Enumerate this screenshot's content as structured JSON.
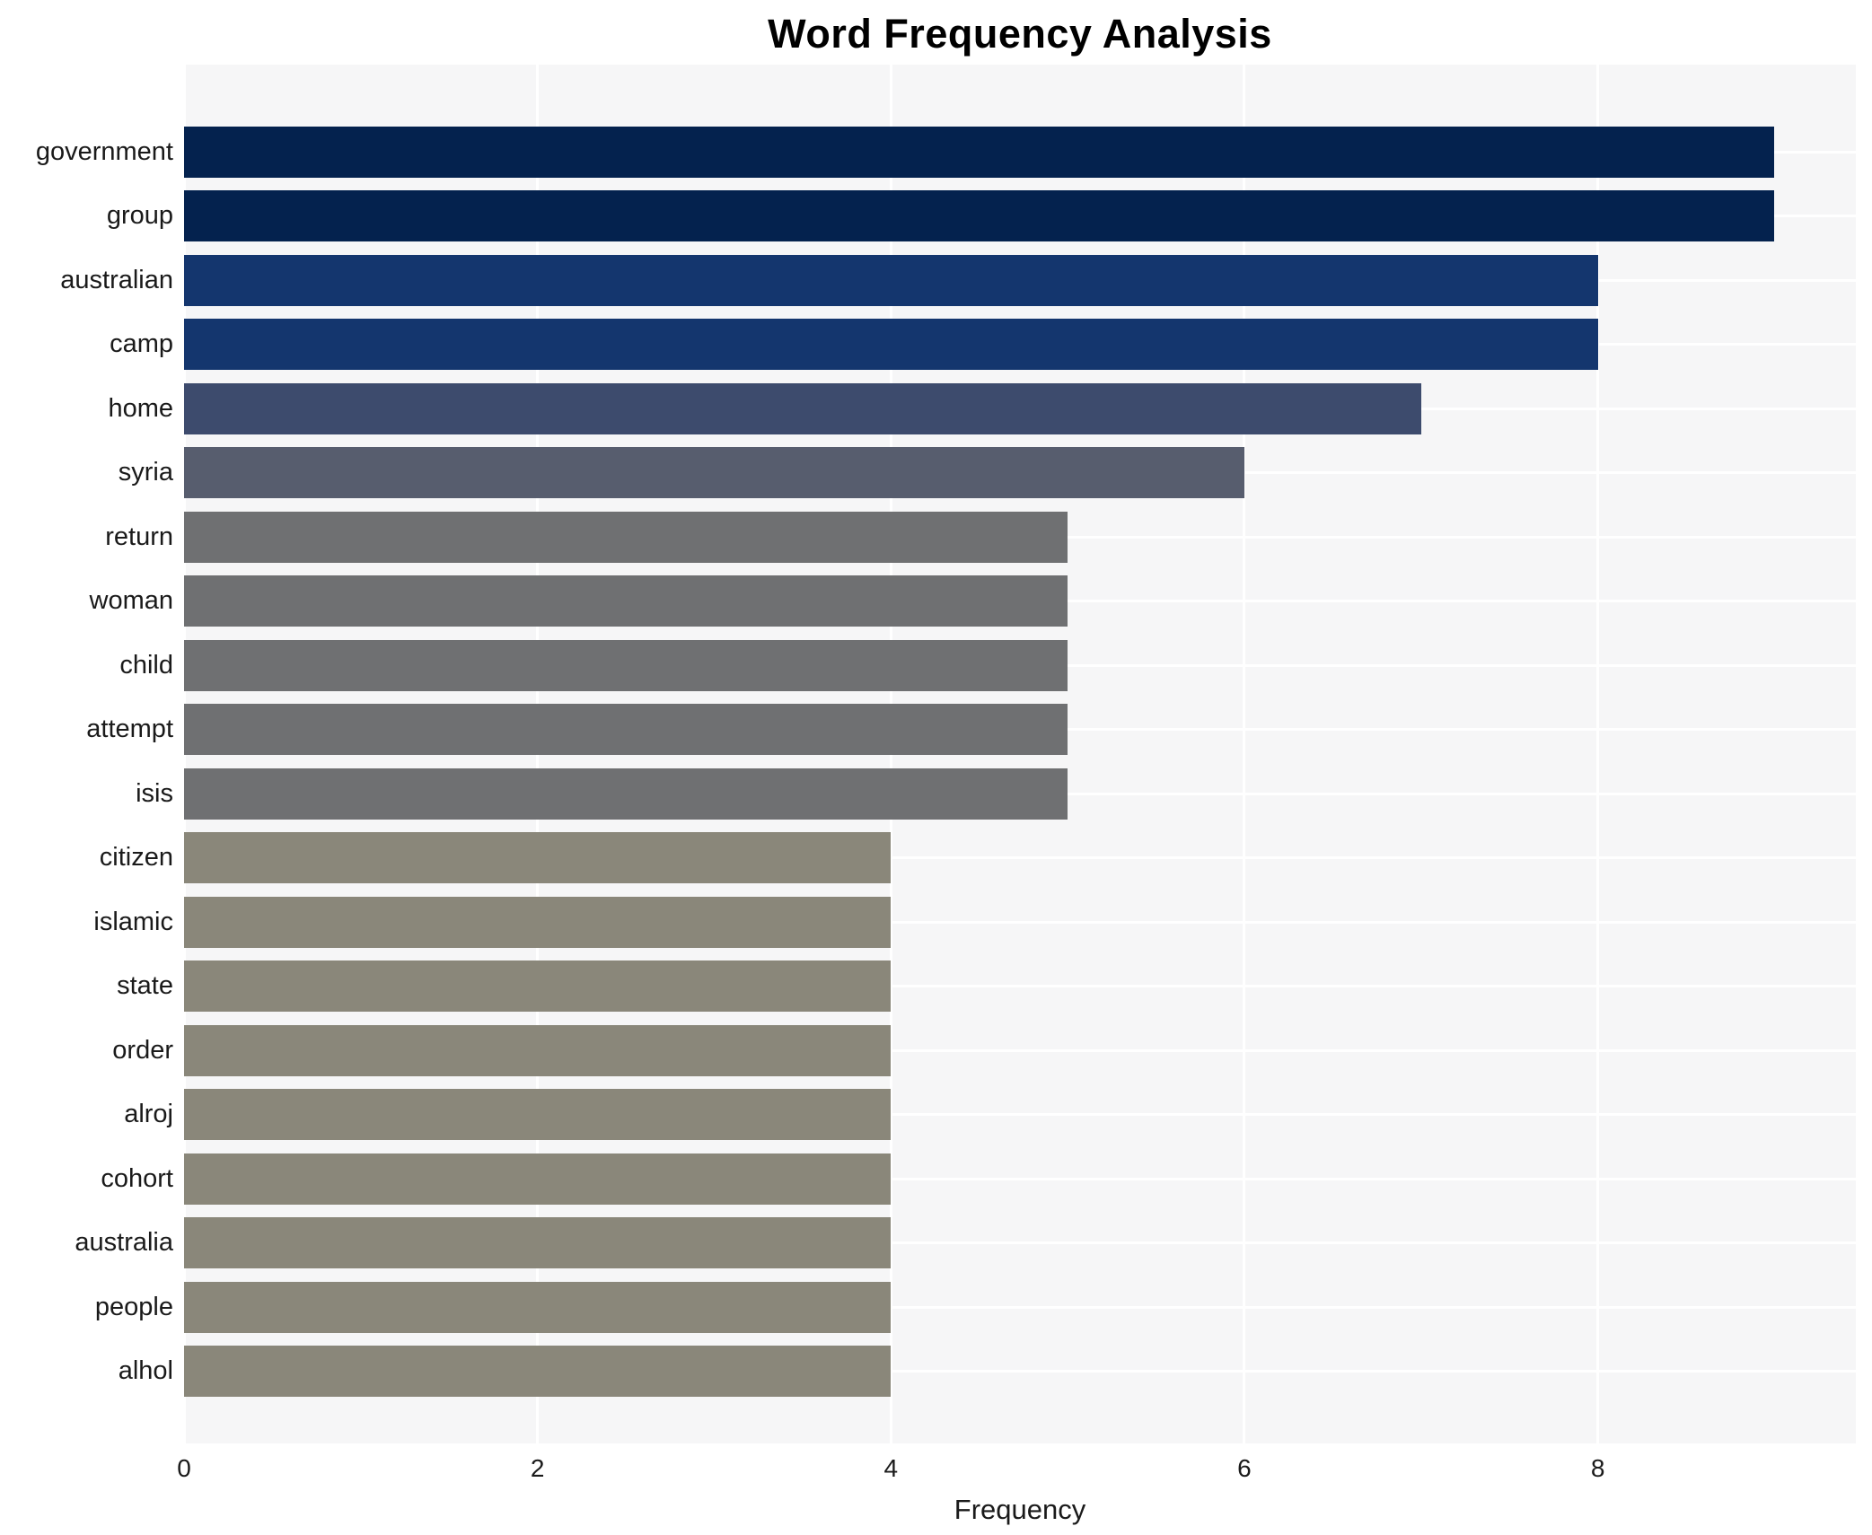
{
  "chart_data": {
    "type": "bar",
    "orientation": "horizontal",
    "title": "Word Frequency Analysis",
    "xlabel": "Frequency",
    "ylabel": "",
    "categories": [
      "government",
      "group",
      "australian",
      "camp",
      "home",
      "syria",
      "return",
      "woman",
      "child",
      "attempt",
      "isis",
      "citizen",
      "islamic",
      "state",
      "order",
      "alroj",
      "cohort",
      "australia",
      "people",
      "alhol"
    ],
    "values": [
      9,
      9,
      8,
      8,
      7,
      6,
      5,
      5,
      5,
      5,
      5,
      4,
      4,
      4,
      4,
      4,
      4,
      4,
      4,
      4
    ],
    "bar_colors": [
      "#04224e",
      "#04224e",
      "#14366e",
      "#14366e",
      "#3d4b6d",
      "#575d6e",
      "#6f7072",
      "#6f7072",
      "#6f7072",
      "#6f7072",
      "#6f7072",
      "#8a877a",
      "#8a877a",
      "#8a877a",
      "#8a877a",
      "#8a877a",
      "#8a877a",
      "#8a877a",
      "#8a877a",
      "#8a877a"
    ],
    "xticks": [
      "0",
      "2",
      "4",
      "6",
      "8"
    ],
    "xtick_values": [
      0,
      2,
      4,
      6,
      8
    ],
    "xlim": [
      0,
      9.46
    ],
    "grid": "white gridlines on light gray plot background",
    "legend": "none",
    "plot_background_color": "#f6f6f7",
    "gridline_color": "#ffffff",
    "label_color": "#1a1a1a",
    "title_color": "#000000"
  }
}
